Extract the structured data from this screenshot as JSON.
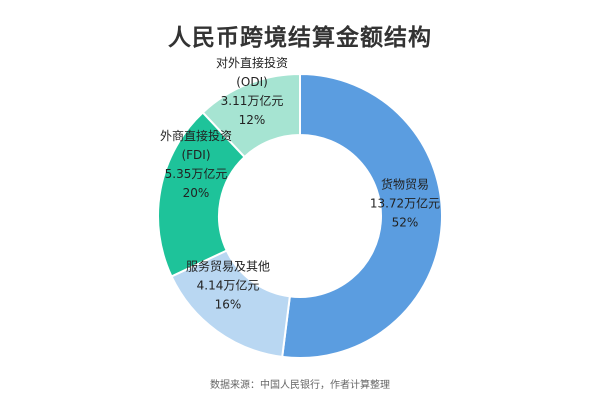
{
  "chart_data": {
    "type": "pie",
    "title": "人民币跨境结算金额结构",
    "source": "数据来源：中国人民银行，作者计算整理",
    "slices": [
      {
        "label": "货物贸易",
        "amount": "13.72万亿元",
        "percent": "52%",
        "share": 52,
        "color": "#5b9de0"
      },
      {
        "label": "服务贸易及其他",
        "amount": "4.14万亿元",
        "percent": "16%",
        "share": 16,
        "color": "#b9d7f2"
      },
      {
        "label": "外商直接投资",
        "abbr": "(FDI)",
        "amount": "5.35万亿元",
        "percent": "20%",
        "share": 20,
        "color": "#1ec39a"
      },
      {
        "label": "对外直接投资",
        "abbr": "(ODI)",
        "amount": "3.11万亿元",
        "percent": "12%",
        "share": 12,
        "color": "#a6e4d2"
      }
    ]
  }
}
